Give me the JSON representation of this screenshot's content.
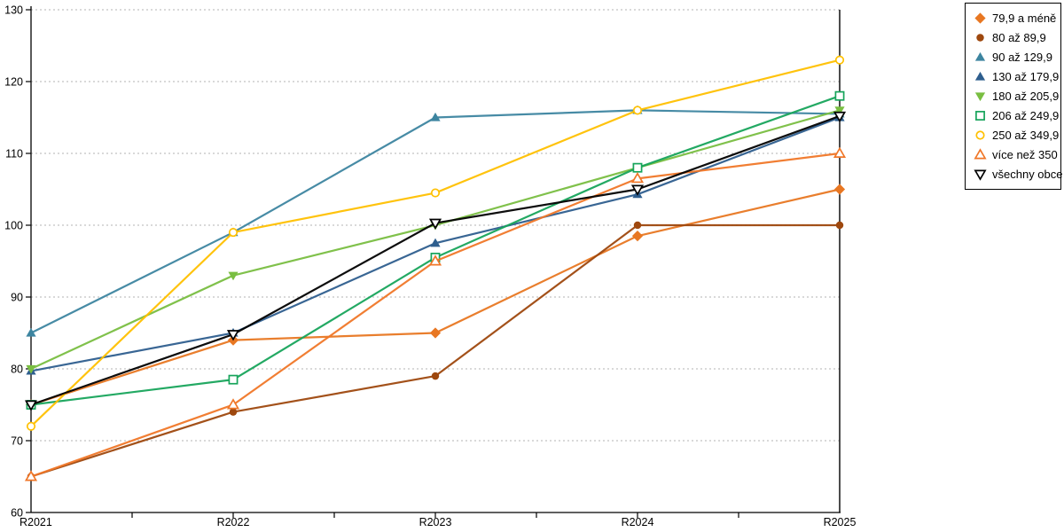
{
  "chart_data": {
    "type": "line",
    "x": [
      "R2021",
      "R2022",
      "R2023",
      "R2024",
      "R2025"
    ],
    "yticks": [
      130,
      120,
      110,
      100,
      90,
      80,
      70,
      60
    ],
    "ylim": [
      60,
      130
    ],
    "grid": "horizontal dotted gridlines at every 10 units",
    "legend_position": "right",
    "series": [
      {
        "name": "79,9 a méně",
        "color": "#E87722",
        "marker": "diamond",
        "fill": "filled",
        "values": [
          75,
          84,
          85,
          98.5,
          105
        ]
      },
      {
        "name": "80 až 89,9",
        "color": "#9E480E",
        "marker": "circle",
        "fill": "filled",
        "values": [
          65,
          74,
          79,
          100,
          100
        ]
      },
      {
        "name": "90 až 129,9",
        "color": "#3D85A0",
        "marker": "triangle-up",
        "fill": "filled",
        "values": [
          85,
          99,
          115,
          116,
          115.5
        ]
      },
      {
        "name": "130 až 179,9",
        "color": "#2E5E8E",
        "marker": "triangle-up",
        "fill": "filled",
        "values": [
          79.7,
          85,
          97.5,
          104.3,
          115
        ]
      },
      {
        "name": "180 až 205,9",
        "color": "#79BE41",
        "marker": "triangle-down",
        "fill": "filled",
        "values": [
          80,
          93,
          100,
          108,
          116
        ]
      },
      {
        "name": "206 až 249,9",
        "color": "#17A45B",
        "marker": "square",
        "fill": "open",
        "values": [
          75,
          78.5,
          95.5,
          108,
          118
        ]
      },
      {
        "name": "250 až 349,9",
        "color": "#FFC000",
        "marker": "circle",
        "fill": "open",
        "values": [
          72,
          99,
          104.5,
          116,
          123
        ]
      },
      {
        "name": "více než 350",
        "color": "#F07728",
        "marker": "triangle-up",
        "fill": "open",
        "values": [
          65,
          75,
          95,
          106.5,
          110
        ]
      },
      {
        "name": "všechny obce",
        "color": "#000000",
        "marker": "triangle-down",
        "fill": "open",
        "values": [
          75,
          84.8,
          100.3,
          105,
          115.2
        ]
      }
    ]
  }
}
